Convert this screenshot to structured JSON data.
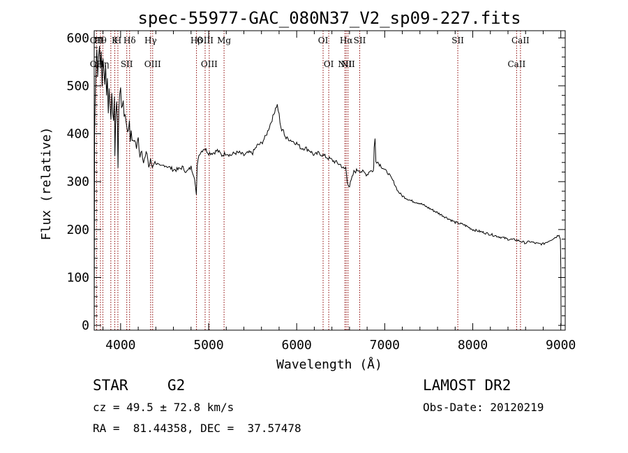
{
  "chart_data": {
    "type": "line",
    "title": "spec-55977-GAC_080N37_V2_sp09-227.fits",
    "xlabel": "Wavelength (Å)",
    "ylabel": "Flux (relative)",
    "xlim": [
      3700,
      9050
    ],
    "ylim": [
      -10,
      615
    ],
    "xticks": [
      4000,
      5000,
      6000,
      7000,
      8000,
      9000
    ],
    "yticks": [
      0,
      100,
      200,
      300,
      400,
      500,
      600
    ],
    "grid": false,
    "line_color": "#000000",
    "marker_color": "#8b0000",
    "series": [
      {
        "x": [
          3700,
          3705,
          3712,
          3720,
          3730,
          3740,
          3750,
          3760,
          3770,
          3780,
          3790,
          3800,
          3810,
          3820,
          3830,
          3840,
          3850,
          3860,
          3870,
          3880,
          3890,
          3900,
          3910,
          3920,
          3930,
          3935,
          3945,
          3955,
          3965,
          3970,
          3980,
          3990,
          4000,
          4010,
          4020,
          4030,
          4040,
          4050,
          4060,
          4070,
          4080,
          4090,
          4100,
          4110,
          4120,
          4140,
          4160,
          4180,
          4200,
          4220,
          4240,
          4260,
          4280,
          4300,
          4320,
          4340,
          4360,
          4380,
          4400,
          4450,
          4500,
          4550,
          4600,
          4650,
          4700,
          4750,
          4800,
          4840,
          4860,
          4870,
          4880,
          4900,
          4950,
          5000,
          5050,
          5100,
          5150,
          5200,
          5250,
          5300,
          5350,
          5400,
          5450,
          5500,
          5550,
          5600,
          5650,
          5700,
          5720,
          5740,
          5760,
          5780,
          5800,
          5810,
          5820,
          5830,
          5840,
          5860,
          5880,
          5900,
          5950,
          6000,
          6050,
          6100,
          6150,
          6200,
          6250,
          6300,
          6350,
          6400,
          6450,
          6500,
          6540,
          6555,
          6563,
          6575,
          6600,
          6650,
          6700,
          6750,
          6800,
          6840,
          6860,
          6870,
          6875,
          6880,
          6890,
          6900,
          6950,
          7000,
          7050,
          7100,
          7150,
          7200,
          7300,
          7400,
          7500,
          7600,
          7700,
          7800,
          7900,
          8000,
          8100,
          8200,
          8300,
          8400,
          8500,
          8550,
          8600,
          8650,
          8700,
          8750,
          8800,
          8850,
          8900,
          8950,
          8980,
          8995,
          9000,
          9003
        ],
        "y": [
          0,
          400,
          480,
          540,
          580,
          520,
          560,
          590,
          530,
          570,
          500,
          560,
          530,
          500,
          550,
          480,
          520,
          440,
          500,
          460,
          430,
          490,
          450,
          420,
          470,
          360,
          440,
          460,
          420,
          330,
          450,
          480,
          500,
          460,
          450,
          470,
          440,
          440,
          430,
          420,
          400,
          410,
          430,
          390,
          400,
          380,
          390,
          370,
          390,
          355,
          370,
          340,
          350,
          360,
          330,
          345,
          330,
          340,
          340,
          330,
          335,
          330,
          325,
          325,
          330,
          320,
          330,
          310,
          270,
          330,
          350,
          360,
          370,
          360,
          360,
          365,
          355,
          360,
          355,
          360,
          360,
          355,
          360,
          360,
          375,
          380,
          395,
          420,
          430,
          440,
          455,
          460,
          440,
          425,
          410,
          405,
          410,
          400,
          390,
          390,
          385,
          380,
          370,
          370,
          365,
          355,
          360,
          355,
          350,
          345,
          340,
          335,
          325,
          330,
          320,
          300,
          290,
          320,
          325,
          320,
          315,
          325,
          320,
          325,
          330,
          370,
          390,
          345,
          335,
          325,
          315,
          300,
          280,
          270,
          260,
          255,
          245,
          235,
          225,
          215,
          210,
          200,
          195,
          190,
          185,
          180,
          178,
          175,
          172,
          175,
          172,
          170,
          170,
          175,
          180,
          185,
          190,
          180,
          120,
          0
        ]
      }
    ],
    "lines": [
      {
        "x": 3727,
        "top": "OII",
        "bottom": "OII"
      },
      {
        "x": 3771,
        "top": "Hθ",
        "bottom": ""
      },
      {
        "x": 3798,
        "top": "",
        "bottom": "Hη"
      },
      {
        "x": 3889,
        "top": "",
        "bottom": ""
      },
      {
        "x": 3934,
        "top": "K",
        "bottom": ""
      },
      {
        "x": 3969,
        "top": "H",
        "bottom": ""
      },
      {
        "x": 4070,
        "top": "",
        "bottom": "SII"
      },
      {
        "x": 4102,
        "top": "Hδ",
        "bottom": ""
      },
      {
        "x": 4341,
        "top": "Hγ",
        "bottom": ""
      },
      {
        "x": 4364,
        "top": "",
        "bottom": "OIII"
      },
      {
        "x": 4862,
        "top": "Hβ",
        "bottom": ""
      },
      {
        "x": 4960,
        "top": "OIII",
        "bottom": ""
      },
      {
        "x": 5007,
        "top": "",
        "bottom": "OIII"
      },
      {
        "x": 5175,
        "top": "Mg",
        "bottom": ""
      },
      {
        "x": 6300,
        "top": "OI",
        "bottom": ""
      },
      {
        "x": 6364,
        "top": "",
        "bottom": "OI"
      },
      {
        "x": 6548,
        "top": "",
        "bottom": "NII"
      },
      {
        "x": 6563,
        "top": "Hα",
        "bottom": ""
      },
      {
        "x": 6583,
        "top": "",
        "bottom": "NII"
      },
      {
        "x": 6716,
        "top": "SII",
        "bottom": ""
      },
      {
        "x": 7830,
        "top": "SII",
        "bottom": ""
      },
      {
        "x": 8498,
        "top": "",
        "bottom": "CaII"
      },
      {
        "x": 8542,
        "top": "CaII",
        "bottom": ""
      }
    ]
  },
  "info": {
    "object_class": "STAR",
    "subclass": "G2",
    "cz": "cz = 49.5 ± 72.8 km/s",
    "coords": "RA =  81.44358, DEC =  37.57478",
    "survey": "LAMOST DR2",
    "obs_date": "Obs-Date: 20120219"
  }
}
